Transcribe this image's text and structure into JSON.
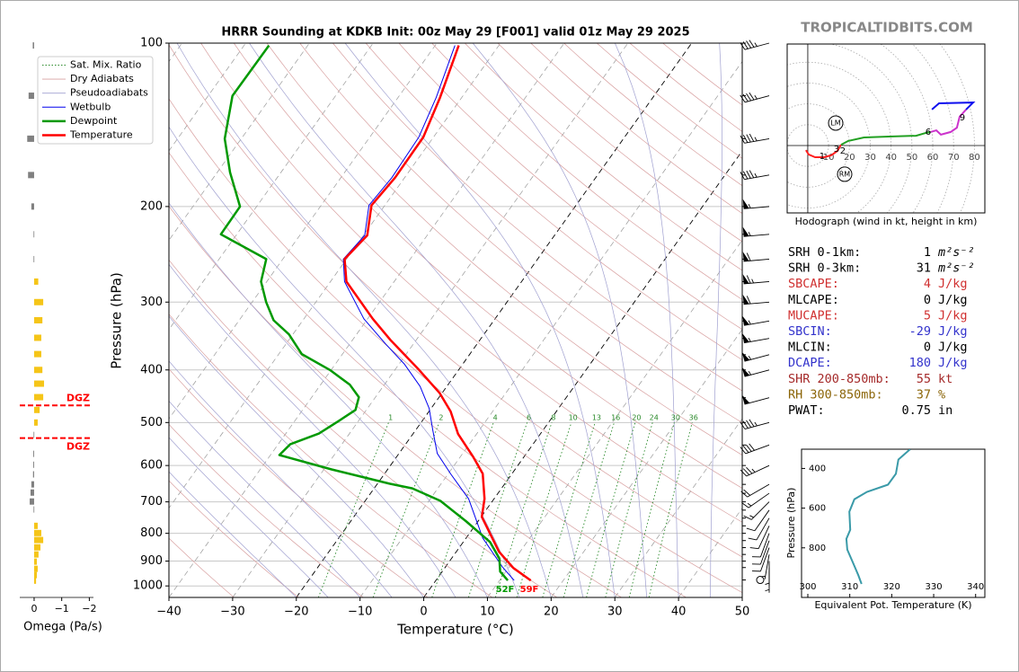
{
  "site": "TROPICALTIDBITS.COM",
  "parameters": [
    {
      "label": "SRH 0-1km:",
      "value": 1,
      "unit": "m²s⁻²",
      "color": "#000000"
    },
    {
      "label": "SRH 0-3km:",
      "value": 31,
      "unit": "m²s⁻²",
      "color": "#000000"
    },
    {
      "label": "SBCAPE:",
      "value": 4,
      "unit": "J/kg",
      "color": "#d03030"
    },
    {
      "label": "MLCAPE:",
      "value": 0,
      "unit": "J/kg",
      "color": "#000000"
    },
    {
      "label": "MUCAPE:",
      "value": 5,
      "unit": "J/kg",
      "color": "#d03030"
    },
    {
      "label": "SBCIN:",
      "value": -29,
      "unit": "J/kg",
      "color": "#3333cc"
    },
    {
      "label": "MLCIN:",
      "value": 0,
      "unit": "J/kg",
      "color": "#000000"
    },
    {
      "label": "DCAPE:",
      "value": 180,
      "unit": "J/kg",
      "color": "#3333cc"
    },
    {
      "label": "SHR 200-850mb:",
      "value": 55,
      "unit": "kt",
      "color": "#a52a2a"
    },
    {
      "label": "RH 300-850mb:",
      "value": 37,
      "unit": "%",
      "color": "#8b6508"
    },
    {
      "label": "PWAT:",
      "value": 0.75,
      "unit": "in",
      "color": "#000000"
    }
  ],
  "chart_data": [
    {
      "type": "skewt",
      "title": "HRRR Sounding at KDKB Init: 00z May 29 [F001] valid 01z May 29 2025",
      "x_label": "Temperature (°C)",
      "y_label": "Pressure (hPa)",
      "xlim": [
        -40,
        50
      ],
      "ylim": [
        1050,
        100
      ],
      "y_scale": "log",
      "xticks": [
        {
          "value": -40,
          "label": "−40"
        },
        {
          "value": -30,
          "label": "−30"
        },
        {
          "value": -20,
          "label": "−20"
        },
        {
          "value": -10,
          "label": "−10"
        },
        0,
        10,
        20,
        30,
        40,
        50
      ],
      "yticks": [
        100,
        200,
        300,
        400,
        500,
        600,
        700,
        800,
        900,
        1000
      ],
      "grid": true,
      "highlight_isotherms": [
        0,
        -20
      ],
      "reference_lines": [
        {
          "name": "Sat. Mix. Ratio",
          "color": "#2a8a2a",
          "linestyle": "dotted"
        },
        {
          "name": "Dry Adiabats",
          "color": "#d8a0a0",
          "linestyle": "solid"
        },
        {
          "name": "Pseudoadiabats",
          "color": "#a0a0d0",
          "linestyle": "solid"
        }
      ],
      "mixing_ratio_labels": [
        1,
        2,
        4,
        6,
        8,
        10,
        13,
        16,
        20,
        24,
        30,
        36
      ],
      "series": [
        {
          "name": "Wetbulb",
          "color": "#0000ee",
          "linewidth": 1,
          "y": [
            977,
            922,
            816,
            691,
            623,
            570,
            515,
            471,
            429,
            390,
            358,
            322,
            275,
            250,
            226,
            199,
            177,
            149,
            126,
            101
          ],
          "x": [
            12.3,
            8.9,
            2.6,
            -4.0,
            -9.5,
            -14.0,
            -17.4,
            -20.3,
            -24.2,
            -29.2,
            -34.4,
            -40.6,
            -47.8,
            -50.5,
            -49.8,
            -52.5,
            -52.0,
            -52.3,
            -54.0,
            -56.9
          ]
        },
        {
          "name": "Dewpoint",
          "color": "#009900",
          "linewidth": 2.5,
          "y": [
            977,
            941,
            890,
            830,
            761,
            697,
            661,
            648,
            610,
            574,
            548,
            524,
            497,
            474,
            449,
            426,
            400,
            374,
            344,
            324,
            300,
            275,
            250,
            225,
            200,
            173,
            150,
            125,
            101
          ],
          "x": [
            11.3,
            9.1,
            7.5,
            4.2,
            -1.8,
            -8.2,
            -14.0,
            -18.1,
            -28.8,
            -38.6,
            -38.1,
            -34.8,
            -33.1,
            -31.7,
            -32.6,
            -35.4,
            -40.2,
            -46.4,
            -50.6,
            -54.6,
            -57.8,
            -60.9,
            -62.6,
            -72.5,
            -72.6,
            -78.0,
            -82.6,
            -86.2,
            -86.1
          ]
        },
        {
          "name": "Temperature",
          "color": "#ff0000",
          "linewidth": 2.5,
          "y": [
            977,
            927,
            865,
            746,
            691,
            621,
            578,
            525,
            477,
            441,
            400,
            352,
            322,
            275,
            250,
            226,
            199,
            177,
            149,
            126,
            101
          ],
          "x": [
            14.9,
            10.8,
            6.7,
            0.1,
            -1.5,
            -4.6,
            -8.0,
            -12.9,
            -16.6,
            -20.4,
            -26.2,
            -34.1,
            -39.2,
            -47.5,
            -50.3,
            -49.4,
            -52.1,
            -51.5,
            -51.6,
            -53.4,
            -56.3
          ]
        }
      ],
      "surface_labels": [
        {
          "text": "52F",
          "color": "#009900"
        },
        {
          "text": "59F",
          "color": "#ff0000"
        }
      ],
      "wind_barbs": {
        "pressure": [
          100,
          125,
          150,
          175,
          200,
          225,
          250,
          275,
          300,
          325,
          350,
          375,
          400,
          450,
          500,
          550,
          600,
          650,
          675,
          700,
          725,
          750,
          775,
          800,
          825,
          850,
          875,
          900,
          925,
          975
        ],
        "speed": [
          45,
          45,
          45,
          45,
          55,
          55,
          60,
          65,
          60,
          55,
          55,
          55,
          55,
          50,
          45,
          40,
          35,
          20,
          15,
          15,
          10,
          10,
          10,
          10,
          10,
          10,
          5,
          5,
          5,
          0
        ],
        "direction": [
          255,
          255,
          260,
          260,
          265,
          265,
          265,
          265,
          265,
          260,
          260,
          255,
          255,
          255,
          255,
          250,
          245,
          240,
          235,
          225,
          215,
          210,
          205,
          200,
          200,
          200,
          190,
          180,
          180,
          0
        ]
      }
    },
    {
      "type": "hodograph",
      "caption": "Hodograph (wind in kt, height in km)",
      "xlim": [
        -9.9,
        85.0
      ],
      "ylim": [
        -32.4,
        48.8
      ],
      "xticks": [
        10,
        20,
        30,
        40,
        50,
        60,
        70,
        80
      ],
      "series": [
        {
          "color": "#ff2020",
          "u": [
            -0.9,
            0.4,
            3.5,
            7.8,
            11.2,
            14.2,
            16.0
          ],
          "v": [
            -2.2,
            -4.3,
            -5.6,
            -5.6,
            -4.7,
            -2.6,
            0.4
          ]
        },
        {
          "color": "#22a022",
          "u": [
            16.0,
            19.4,
            27.0,
            39.0,
            52.0,
            56.5,
            59.0
          ],
          "v": [
            0.4,
            2.2,
            3.9,
            4.3,
            4.7,
            6.0,
            6.5
          ]
        },
        {
          "color": "#cc33cc",
          "u": [
            59.0,
            61.7,
            63.9,
            68.6,
            71.6,
            72.9,
            76.0
          ],
          "v": [
            6.5,
            7.3,
            5.2,
            6.5,
            8.6,
            13.8,
            17.3
          ]
        },
        {
          "color": "#1010ee",
          "u": [
            76.0,
            79.4,
            63.0,
            59.6
          ],
          "v": [
            17.3,
            20.7,
            20.3,
            17.3
          ]
        }
      ],
      "height_labels": [
        {
          "value": 1,
          "u": 6.9,
          "v": -5.2
        },
        {
          "value": 3,
          "u": 13.8,
          "v": -1.7
        },
        {
          "value": 2,
          "u": 16.8,
          "v": -2.6
        },
        {
          "value": 6,
          "u": 57.8,
          "v": 6.5
        },
        {
          "value": 9,
          "u": 74.2,
          "v": 13.4
        }
      ],
      "storm_motions": [
        {
          "label": "LM",
          "u": 13.4,
          "v": 10.8
        },
        {
          "label": "RM",
          "u": 17.7,
          "v": -13.8
        }
      ]
    },
    {
      "type": "profile",
      "x_label": "Equivalent Pot. Temperature (K)",
      "y_label": "Pressure (hPa)",
      "xlim": [
        298.5,
        342.2
      ],
      "ylim": [
        1050,
        303
      ],
      "xticks": [
        300,
        310,
        320,
        330,
        340
      ],
      "yticks": [
        400,
        600,
        800
      ],
      "color": "#3a9aa8",
      "y": [
        303,
        355,
        427,
        482,
        518,
        555,
        618,
        709,
        755,
        809,
        882,
        936,
        982
      ],
      "x": [
        324.4,
        321.6,
        321.0,
        319.1,
        314.1,
        311.1,
        309.9,
        310.1,
        309.2,
        309.4,
        310.9,
        312.0,
        312.8
      ]
    },
    {
      "type": "hbar",
      "x_label": "Omega (Pa/s)",
      "xlim": [
        0.52,
        -2.15
      ],
      "ylim": [
        1050,
        100
      ],
      "y_scale": "log",
      "xticks": [
        0,
        {
          "value": -1,
          "label": "−1"
        },
        {
          "value": -2,
          "label": "−2"
        }
      ],
      "y": [
        101,
        125,
        150,
        175,
        200,
        225,
        250,
        275,
        300,
        324,
        349,
        374,
        400,
        424,
        449,
        474,
        500,
        527,
        571,
        598,
        623,
        650,
        673,
        699,
        723,
        775,
        799,
        823,
        849,
        875,
        902,
        930,
        955,
        978
      ],
      "values": [
        0.05,
        0.2,
        0.25,
        0.22,
        0.1,
        0.02,
        0.02,
        -0.15,
        -0.33,
        -0.3,
        -0.26,
        -0.26,
        -0.3,
        -0.36,
        -0.33,
        -0.2,
        -0.13,
        0.02,
        0.03,
        0.03,
        0.04,
        0.1,
        0.13,
        0.16,
        0.02,
        -0.13,
        -0.26,
        -0.33,
        -0.23,
        -0.16,
        -0.1,
        -0.13,
        -0.1,
        -0.07
      ],
      "colors": [
        "#808080",
        "#808080",
        "#808080",
        "#808080",
        "#808080",
        "#808080",
        "#808080",
        "#f5c518",
        "#f5c518",
        "#f5c518",
        "#f5c518",
        "#f5c518",
        "#f5c518",
        "#f5c518",
        "#f5c518",
        "#f5c518",
        "#f5c518",
        "#808080",
        "#808080",
        "#808080",
        "#808080",
        "#808080",
        "#808080",
        "#808080",
        "#808080",
        "#f5c518",
        "#f5c518",
        "#f5c518",
        "#f5c518",
        "#f5c518",
        "#f5c518",
        "#f5c518",
        "#f5c518",
        "#f5c518"
      ],
      "dgz_color": "#ff0000",
      "dgz_lines": [
        {
          "pressure": 465,
          "label": "DGZ"
        },
        {
          "pressure": 534,
          "label": "DGZ"
        }
      ]
    }
  ]
}
